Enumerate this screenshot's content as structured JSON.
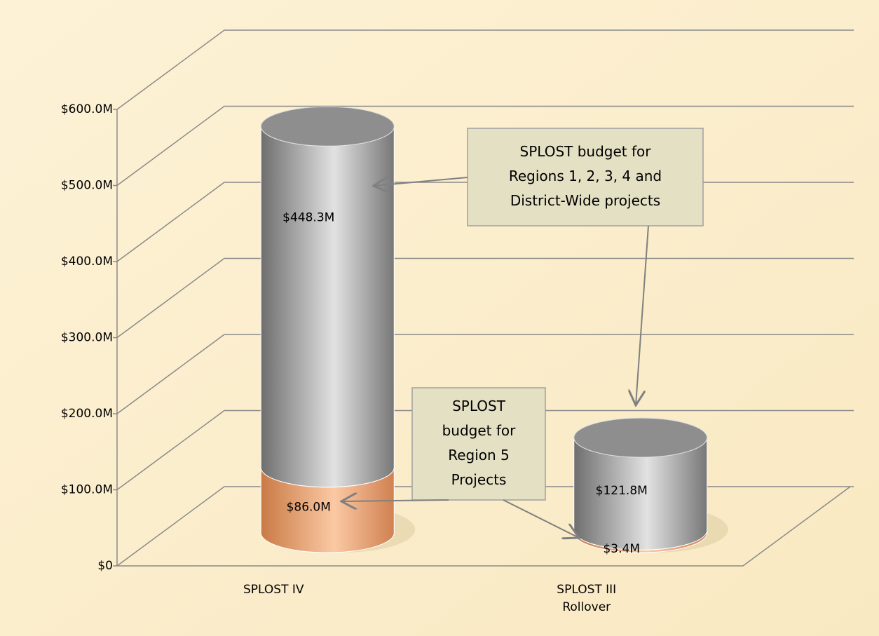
{
  "chart_data": {
    "type": "stacked-cylinder",
    "categories": [
      "SPLOST IV",
      "SPLOST III Rollover"
    ],
    "series": [
      {
        "color": "#f0a878",
        "values": [
          86.0,
          3.4
        ],
        "value_labels": [
          "$86.0M",
          "$3.4M"
        ]
      },
      {
        "color": "#a8a8a8",
        "values": [
          448.3,
          121.8
        ],
        "value_labels": [
          "$448.3M",
          "$121.8M"
        ]
      }
    ],
    "ylim": [
      0,
      600
    ],
    "yticks": [
      {
        "value": 0,
        "label": "$0"
      },
      {
        "value": 100,
        "label": "$100.0M"
      },
      {
        "value": 200,
        "label": "$200.0M"
      },
      {
        "value": 300,
        "label": "$300.0M"
      },
      {
        "value": 400,
        "label": "$400.0M"
      },
      {
        "value": 500,
        "label": "$500.0M"
      },
      {
        "value": 600,
        "label": "$600.0M"
      }
    ],
    "grid": true,
    "annotations": [
      {
        "lines": [
          "SPLOST budget for",
          "Regions 1, 2, 3, 4 and",
          "District-Wide projects"
        ]
      },
      {
        "lines": [
          "SPLOST",
          "budget for",
          "Region 5",
          "Projects"
        ]
      }
    ]
  }
}
